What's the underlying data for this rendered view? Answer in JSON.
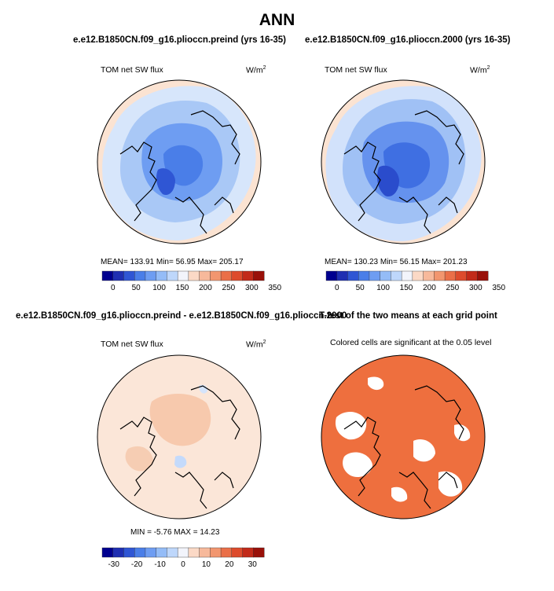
{
  "figure": {
    "main_title": "ANN",
    "colors": {
      "full_scale": [
        "#00008f",
        "#1f2fb2",
        "#2f56d4",
        "#4a7ee8",
        "#6e9df2",
        "#94bcf7",
        "#bed7fb",
        "#f2f4fb",
        "#fbd9c6",
        "#f7b99b",
        "#f2966f",
        "#ea6f48",
        "#dd4b2c",
        "#c22a19",
        "#991009"
      ],
      "land_line": "#000000",
      "signif_fill": "#ee6f3e"
    }
  },
  "chart_data": [
    {
      "type": "heatmap",
      "id": "preind",
      "title": "e.e12.B1850CN.f09_g16.plioccn.preind (yrs 16-35)",
      "left_label": "TOM net SW flux",
      "units": "W/m",
      "units_sup": "2",
      "stats_text": "MEAN= 133.91   Min=   56.95   Max= 205.17",
      "stats": {
        "mean": 133.91,
        "min": 56.95,
        "max": 205.17
      },
      "colorbar": {
        "ticks": [
          "0",
          "50",
          "100",
          "150",
          "200",
          "250",
          "300",
          "350"
        ],
        "range": [
          0,
          350
        ]
      }
    },
    {
      "type": "heatmap",
      "id": "y2000",
      "title": "e.e12.B1850CN.f09_g16.plioccn.2000 (yrs 16-35)",
      "left_label": "TOM net SW flux",
      "units": "W/m",
      "units_sup": "2",
      "stats_text": "MEAN= 130.23   Min=   56.15   Max= 201.23",
      "stats": {
        "mean": 130.23,
        "min": 56.15,
        "max": 201.23
      },
      "colorbar": {
        "ticks": [
          "0",
          "50",
          "100",
          "150",
          "200",
          "250",
          "300",
          "350"
        ],
        "range": [
          0,
          350
        ]
      }
    },
    {
      "type": "heatmap",
      "id": "diff",
      "title": "e.e12.B1850CN.f09_g16.plioccn.preind - e.e12.B1850CN.f09_g16.plioccn.2000",
      "left_label": "TOM net SW flux",
      "units": "W/m",
      "units_sup": "2",
      "stats_text": "MIN =   -5.76  MAX =   14.23",
      "stats": {
        "min": -5.76,
        "max": 14.23
      },
      "colorbar": {
        "ticks": [
          "-30",
          "-20",
          "-10",
          "0",
          "10",
          "20",
          "30"
        ],
        "range": [
          -35,
          35
        ]
      }
    },
    {
      "type": "heatmap",
      "id": "ttest",
      "title": "T-test of the two means at each grid point",
      "subtitle": "Colored cells are significant at the 0.05 level"
    }
  ]
}
